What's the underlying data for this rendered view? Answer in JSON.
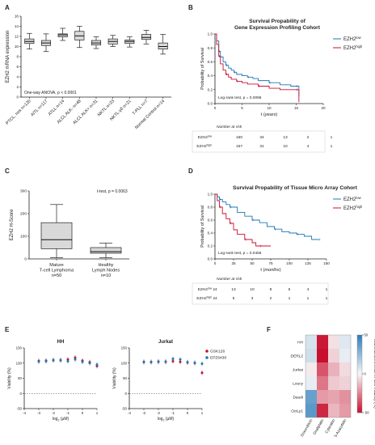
{
  "panels": {
    "A": {
      "letter": "A"
    },
    "B": {
      "letter": "B"
    },
    "C": {
      "letter": "C"
    },
    "D": {
      "letter": "D"
    },
    "E": {
      "letter": "E"
    },
    "F": {
      "letter": "F"
    }
  },
  "chart_data": [
    {
      "id": "A",
      "type": "box",
      "ylabel": "EZH2 mRNA expression",
      "ylim": [
        0,
        16
      ],
      "yticks": [
        0,
        2,
        4,
        6,
        8,
        10,
        12,
        14,
        16
      ],
      "annotation": "One-way ANOVA, p < 0.0001",
      "categories": [
        "PTCL, nos n=120",
        "AITL n=117",
        "ATLL n=14",
        "ALCL ALK- n=48",
        "ALCL ALK+ n=31",
        "NKTL n=23",
        "NKTL-γδ n=21",
        "T-PLL n=7",
        "Normal Control n=14"
      ],
      "boxes": [
        {
          "min": 9.5,
          "q1": 10.6,
          "median": 11.0,
          "q3": 11.5,
          "max": 12.6
        },
        {
          "min": 9.0,
          "q1": 10.2,
          "median": 10.7,
          "q3": 11.2,
          "max": 12.5
        },
        {
          "min": 11.2,
          "q1": 11.9,
          "median": 12.3,
          "q3": 12.5,
          "max": 13.6
        },
        {
          "min": 9.8,
          "q1": 11.3,
          "median": 12.1,
          "q3": 13.0,
          "max": 14.0
        },
        {
          "min": 9.6,
          "q1": 10.3,
          "median": 10.7,
          "q3": 11.2,
          "max": 11.9
        },
        {
          "min": 10.0,
          "q1": 10.5,
          "median": 11.0,
          "q3": 11.5,
          "max": 12.2
        },
        {
          "min": 9.9,
          "q1": 10.6,
          "median": 11.0,
          "q3": 11.3,
          "max": 11.9
        },
        {
          "min": 10.5,
          "q1": 11.4,
          "median": 11.8,
          "q3": 12.4,
          "max": 13.2
        },
        {
          "min": 8.5,
          "q1": 9.5,
          "median": 10.0,
          "q3": 10.7,
          "max": 12.4
        }
      ]
    },
    {
      "id": "B",
      "type": "line",
      "title": "Survival Propability of Gene Expression Profiling Cohort",
      "xlabel": "t (years)",
      "ylabel": "Probability of Survival",
      "xlim": [
        0,
        20
      ],
      "ylim": [
        0,
        1
      ],
      "xticks": [
        0,
        5,
        10,
        15,
        20
      ],
      "yticks": [
        0.0,
        0.2,
        0.4,
        0.6,
        0.8,
        1.0
      ],
      "annotation": "Log-rank test, p = 0.0096",
      "legend_position": "top-right",
      "series": [
        {
          "name": "EZH2low",
          "base": "EZH2",
          "sup": "low",
          "color": "#1f77b4",
          "x": [
            0,
            0.3,
            0.7,
            1.0,
            1.5,
            2.0,
            2.5,
            3.0,
            3.5,
            4.0,
            5.0,
            6.0,
            7.0,
            8.0,
            10.0,
            12.0,
            14.0,
            15.0,
            15.5
          ],
          "y": [
            1.0,
            0.9,
            0.75,
            0.67,
            0.6,
            0.55,
            0.51,
            0.48,
            0.45,
            0.42,
            0.4,
            0.38,
            0.36,
            0.33,
            0.3,
            0.27,
            0.25,
            0.25,
            0.1
          ]
        },
        {
          "name": "EZH2high",
          "base": "EZH2",
          "sup": "high",
          "color": "#c8102e",
          "x": [
            0,
            0.3,
            0.7,
            1.0,
            1.5,
            2.0,
            2.5,
            3.0,
            4.0,
            5.0,
            6.0,
            8.0,
            10.0,
            12.0,
            15.0,
            15.5
          ],
          "y": [
            1.0,
            0.85,
            0.68,
            0.57,
            0.48,
            0.42,
            0.38,
            0.35,
            0.32,
            0.3,
            0.28,
            0.25,
            0.22,
            0.2,
            0.2,
            0.02
          ]
        }
      ],
      "risk_table": {
        "title": "Number at risk",
        "rows": [
          {
            "base": "EZH2",
            "sup": "low",
            "color": "#1f77b4",
            "values": [
              "160",
              "34",
              "13",
              "2",
              "1"
            ]
          },
          {
            "base": "EZH2",
            "sup": "high",
            "color": "#c8102e",
            "values": [
              "157",
              "31",
              "10",
              "4",
              "1"
            ]
          }
        ]
      }
    },
    {
      "id": "C",
      "type": "box",
      "ylabel": "EZH2 H-Score",
      "ylim": [
        0,
        300
      ],
      "yticks": [
        0,
        100,
        200,
        300
      ],
      "annotation": "t-test, p = 0.0063",
      "categories": [
        "Mature T-cell Lymphoma n=50",
        "Healthy Lymph Nodes n=10"
      ],
      "category_lines": [
        [
          "Mature",
          "T-cell Lymphoma",
          "n=50"
        ],
        [
          "Healthy",
          "Lymph Nodes",
          "n=10"
        ]
      ],
      "boxes": [
        {
          "min": 5,
          "q1": 45,
          "median": 85,
          "q3": 160,
          "max": 240
        },
        {
          "min": 5,
          "q1": 25,
          "median": 32,
          "q3": 50,
          "max": 70
        }
      ]
    },
    {
      "id": "D",
      "type": "line",
      "title": "Survival Propability of Tissue Micro Array Cohort",
      "xlabel": "t (months)",
      "ylabel": "Probability of Survival",
      "xlim": [
        0,
        150
      ],
      "ylim": [
        0,
        1
      ],
      "xticks": [
        0,
        25,
        50,
        75,
        100,
        125,
        150
      ],
      "yticks": [
        0.0,
        0.2,
        0.4,
        0.6,
        0.8,
        1.0
      ],
      "annotation": "Log-rank test, p = 0.0456",
      "legend_position": "top-right",
      "series": [
        {
          "name": "EZH2low",
          "base": "EZH2",
          "sup": "low",
          "color": "#1f77b4",
          "x": [
            0,
            3,
            6,
            10,
            15,
            20,
            30,
            40,
            50,
            60,
            70,
            80,
            90,
            100,
            110,
            120,
            130,
            140
          ],
          "y": [
            1.0,
            0.96,
            0.92,
            0.88,
            0.84,
            0.8,
            0.72,
            0.66,
            0.6,
            0.56,
            0.5,
            0.46,
            0.42,
            0.4,
            0.38,
            0.35,
            0.3,
            0.3
          ]
        },
        {
          "name": "EZH2high",
          "base": "EZH2",
          "sup": "high",
          "color": "#c8102e",
          "x": [
            0,
            3,
            6,
            10,
            15,
            20,
            25,
            30,
            40,
            50,
            55,
            60,
            75
          ],
          "y": [
            1.0,
            0.9,
            0.8,
            0.7,
            0.62,
            0.55,
            0.45,
            0.38,
            0.3,
            0.25,
            0.2,
            0.2,
            0.2
          ]
        }
      ],
      "risk_table": {
        "title": "Number at risk",
        "rows": [
          {
            "base": "EZH2",
            "sup": "low",
            "color": "#1f77b4",
            "values": [
              "24",
              "13",
              "10",
              "8",
              "6",
              "4",
              "1"
            ]
          },
          {
            "base": "EZH2",
            "sup": "high",
            "color": "#c8102e",
            "values": [
              "24",
              "5",
              "3",
              "2",
              "1",
              "1",
              "1"
            ]
          }
        ]
      }
    },
    {
      "id": "E",
      "type": "scatter",
      "plots": [
        {
          "title": "HH",
          "show_legend": false,
          "series": [
            {
              "name": "GSK126",
              "color": "#c8102e",
              "x": [
                -3,
                -2.5,
                -2,
                -1.5,
                -1,
                -0.5,
                0,
                0.5,
                1
              ],
              "y": [
                107,
                108,
                110,
                109,
                112,
                118,
                108,
                103,
                90
              ]
            },
            {
              "name": "EPZ6438",
              "color": "#1f77b4",
              "x": [
                -3,
                -2.5,
                -2,
                -1.5,
                -1,
                -0.5,
                0,
                0.5,
                1
              ],
              "y": [
                105,
                106,
                109,
                110,
                106,
                112,
                104,
                100,
                95
              ]
            }
          ]
        },
        {
          "title": "Jurkat",
          "show_legend": true,
          "series": [
            {
              "name": "GSK126",
              "color": "#c8102e",
              "x": [
                -3,
                -2.5,
                -2,
                -1.5,
                -1,
                -0.5,
                0,
                0.5,
                1
              ],
              "y": [
                104,
                103,
                105,
                104,
                106,
                104,
                102,
                100,
                68
              ]
            },
            {
              "name": "EPZ6438",
              "color": "#1f77b4",
              "x": [
                -3,
                -2.5,
                -2,
                -1.5,
                -1,
                -0.5,
                0,
                0.5,
                1
              ],
              "y": [
                103,
                104,
                104,
                105,
                114,
                112,
                103,
                101,
                98
              ]
            }
          ]
        }
      ],
      "xlabel": "log2 (µM)",
      "xlabel_base": "log",
      "xlabel_sub": "2",
      "xlabel_rest": " (µM)",
      "ylabel": "Viability (%)",
      "xlim": [
        -4,
        1
      ],
      "ylim": [
        -50,
        150
      ],
      "xticks": [
        -4,
        -3,
        -2,
        -1,
        0,
        1
      ],
      "yticks": [
        -50,
        0,
        50,
        100,
        150
      ],
      "yticklabels": [
        "-50",
        "0",
        "50",
        "100",
        "150"
      ],
      "reference_line_y": 0
    },
    {
      "id": "F",
      "type": "heatmap",
      "rows": [
        "HH",
        "DERL2",
        "Jurkat",
        "Loucy",
        "Daudi",
        "OciLy1"
      ],
      "columns": [
        "Doxorubicin",
        "Oxaliplatin",
        "Cytarabin",
        "5-Azacytidin"
      ],
      "values": [
        [
          8,
          -48,
          -5,
          6
        ],
        [
          10,
          -50,
          -8,
          4
        ],
        [
          -3,
          -35,
          -15,
          -6
        ],
        [
          4,
          -28,
          -10,
          -8
        ],
        [
          35,
          -20,
          -18,
          -22
        ],
        [
          38,
          -45,
          -14,
          -20
        ]
      ],
      "colorbar_label": "Maximal Difference in Cell Viability (%)",
      "colorbar_ticks": [
        50,
        0,
        -50
      ],
      "colorbar_ticklabels": [
        "50",
        "0",
        "-50"
      ],
      "range": [
        -50,
        50
      ],
      "colors": {
        "positive": "#2b7bba",
        "zero": "#f7f7f7",
        "negative": "#c8102e"
      }
    }
  ]
}
